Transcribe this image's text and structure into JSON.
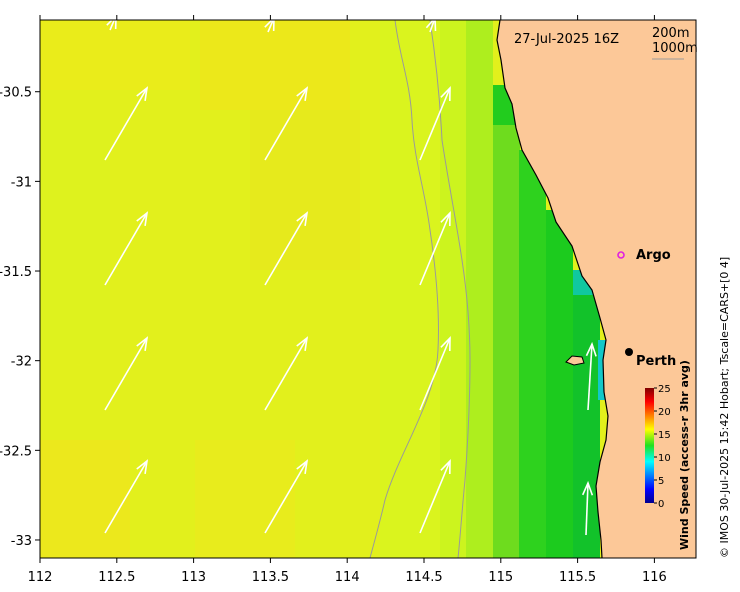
{
  "map": {
    "timestamp": "27-Jul-2025 16Z",
    "depth_contours": [
      "200m",
      "1000m"
    ],
    "x_ticks": [
      "112",
      "112.5",
      "113",
      "113.5",
      "114",
      "114.5",
      "115",
      "115.5",
      "116"
    ],
    "y_ticks": [
      "-30.5",
      "-31",
      "-31.5",
      "-32",
      "-32.5",
      "-33"
    ],
    "x_range": [
      112.0,
      116.3
    ],
    "y_range": [
      -33.1,
      -30.1
    ],
    "places": [
      {
        "name": "Argo",
        "lon": 115.85,
        "lat": -31.47,
        "marker": "circle-magenta"
      },
      {
        "name": "Perth",
        "lon": 115.86,
        "lat": -31.95,
        "marker": "dot-black"
      }
    ],
    "credit": "© IMOS 30-Jul-2025 15:42 Hobart; Tscale=CARS+[0 4]"
  },
  "colorbar": {
    "title": "Wind Speed (access-r 3hr avg)",
    "ticks": [
      "25",
      "20",
      "15",
      "10",
      "5",
      "0"
    ],
    "range": [
      0,
      25
    ]
  },
  "colors": {
    "land": "#FCC898",
    "offshore": "#E4F21A",
    "nearshore": "#1CCB1E",
    "contour": "#9a9a9a",
    "arrow": "#ffffff",
    "argo": "#E020E0"
  }
}
